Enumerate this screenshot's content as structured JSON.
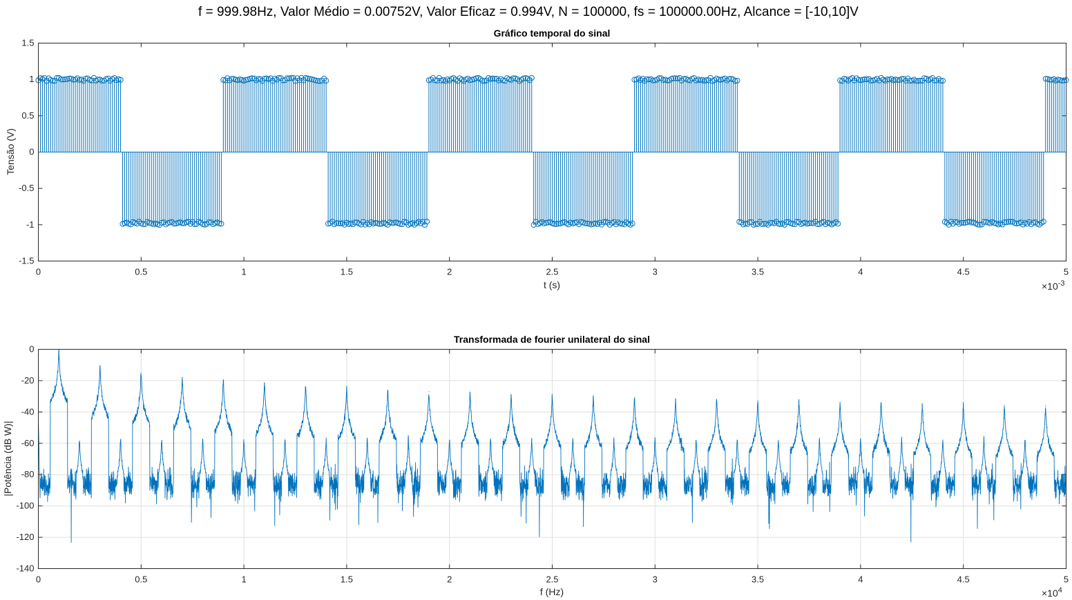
{
  "figure": {
    "suptitle": "f = 999.98Hz, Valor Médio = 0.00752V, Valor Eficaz = 0.994V, N = 100000, fs = 100000.00Hz, Alcance = [-10,10]V"
  },
  "colors": {
    "series": "#0072bd",
    "axis": "#262626",
    "grid": "#dfdfdf"
  },
  "chart_data": [
    {
      "type": "stem",
      "title": "Gráfico temporal do sinal",
      "xlabel": "t (s)",
      "ylabel": "Tensão (V)",
      "x_exponent": "×10",
      "x_exponent_power": "-3",
      "xlim": [
        0,
        0.005
      ],
      "ylim": [
        -1.5,
        1.5
      ],
      "xticks": [
        0,
        0.0005,
        0.001,
        0.0015,
        0.002,
        0.0025,
        0.003,
        0.0035,
        0.004,
        0.0045,
        0.005
      ],
      "xtick_labels": [
        "0",
        "0.5",
        "1",
        "1.5",
        "2",
        "2.5",
        "3",
        "3.5",
        "4",
        "4.5",
        "5"
      ],
      "yticks": [
        -1.5,
        -1,
        -0.5,
        0,
        0.5,
        1,
        1.5
      ],
      "ytick_labels": [
        "-1.5",
        "-1",
        "-0.5",
        "0",
        "0.5",
        "1",
        "1.5"
      ],
      "grid": false,
      "sample_period": 1e-05,
      "signal_period": 0.001,
      "first_high_end": 0.00041,
      "high_level": 1.0,
      "low_level": -0.98,
      "marker": "circle"
    },
    {
      "type": "line",
      "title": "Transformada de fourier unilateral do sinal",
      "xlabel": "f (Hz)",
      "ylabel": "|Potência (dB W)|",
      "x_exponent": "×10",
      "x_exponent_power": "4",
      "xlim": [
        0,
        50000
      ],
      "ylim": [
        -140,
        0
      ],
      "xticks": [
        0,
        5000,
        10000,
        15000,
        20000,
        25000,
        30000,
        35000,
        40000,
        45000,
        50000
      ],
      "xtick_labels": [
        "0",
        "0.5",
        "1",
        "1.5",
        "2",
        "2.5",
        "3",
        "3.5",
        "4",
        "4.5",
        "5"
      ],
      "yticks": [
        -140,
        -120,
        -100,
        -80,
        -60,
        -40,
        -20,
        0
      ],
      "ytick_labels": [
        "-140",
        "-120",
        "-100",
        "-80",
        "-60",
        "-40",
        "-20",
        "0"
      ],
      "grid": true,
      "fundamental_hz": 999.98,
      "noise_floor_db": [
        -95,
        -78
      ],
      "odd_harmonics": [
        {
          "hz": 1000,
          "db": -1
        },
        {
          "hz": 3000,
          "db": -11
        },
        {
          "hz": 5000,
          "db": -15
        },
        {
          "hz": 7000,
          "db": -18
        },
        {
          "hz": 9000,
          "db": -20
        },
        {
          "hz": 11000,
          "db": -22
        },
        {
          "hz": 13000,
          "db": -24
        },
        {
          "hz": 15000,
          "db": -25
        },
        {
          "hz": 17000,
          "db": -26
        },
        {
          "hz": 19000,
          "db": -27
        },
        {
          "hz": 21000,
          "db": -28
        },
        {
          "hz": 23000,
          "db": -29
        },
        {
          "hz": 25000,
          "db": -30
        },
        {
          "hz": 27000,
          "db": -30
        },
        {
          "hz": 29000,
          "db": -31
        },
        {
          "hz": 31000,
          "db": -32
        },
        {
          "hz": 33000,
          "db": -32
        },
        {
          "hz": 35000,
          "db": -33
        },
        {
          "hz": 37000,
          "db": -33
        },
        {
          "hz": 39000,
          "db": -34
        },
        {
          "hz": 41000,
          "db": -34
        },
        {
          "hz": 43000,
          "db": -35
        },
        {
          "hz": 45000,
          "db": -35
        },
        {
          "hz": 47000,
          "db": -36
        },
        {
          "hz": 49000,
          "db": -36
        }
      ],
      "even_harmonic_db": -57
    }
  ]
}
